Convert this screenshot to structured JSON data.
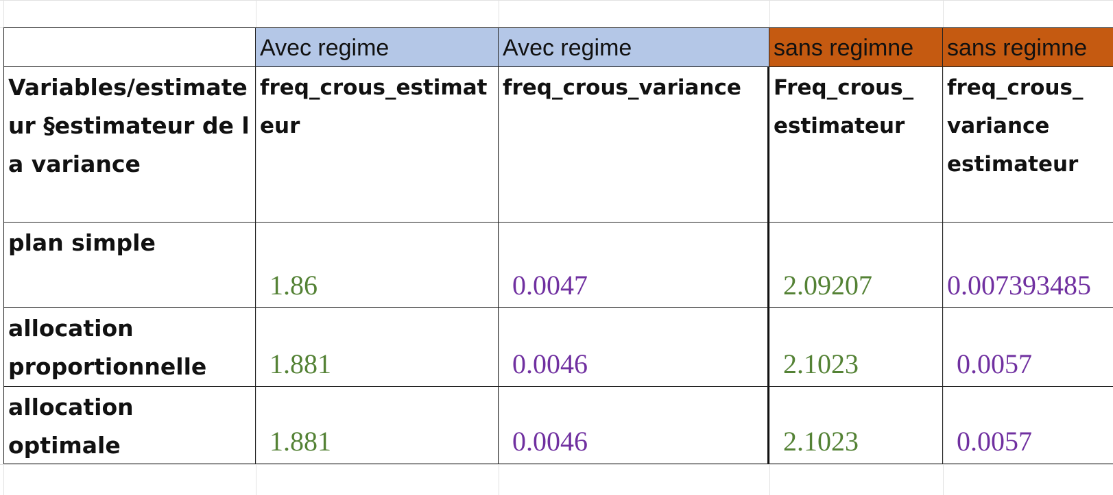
{
  "table": {
    "group_headers": [
      "Avec regime",
      "Avec regime",
      "sans regimne",
      "sans regimne"
    ],
    "headers": [
      "Variables/estimateur §estimateur de la variance",
      "freq_crous_estimateur",
      "freq_crous_variance",
      "Freq_crous_ estimateur",
      "freq_crous_ variance estimateur"
    ],
    "rows": [
      [
        "plan simple",
        "1.86",
        "0.0047",
        "2.09207",
        "0.007393485"
      ],
      [
        "allocation proportionnelle",
        "1.881",
        "0.0046",
        "2.1023",
        "0.0057"
      ],
      [
        "allocation optimale",
        "1.881",
        "0.0046",
        "2.1023",
        "0.0057"
      ]
    ]
  }
}
